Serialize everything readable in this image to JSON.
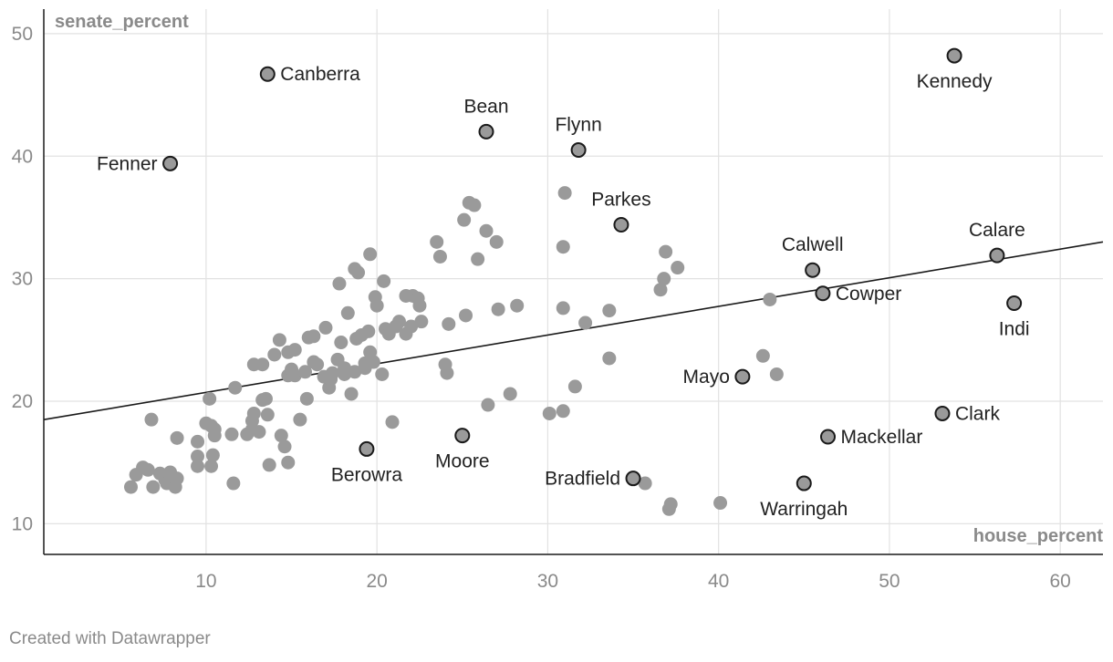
{
  "footer": "Created with Datawrapper",
  "chart_data": {
    "type": "scatter",
    "xlabel": "house_percent",
    "ylabel": "senate_percent",
    "xlim": [
      0.5,
      62.5
    ],
    "ylim": [
      7.5,
      52
    ],
    "xticks": [
      10,
      20,
      30,
      40,
      50,
      60
    ],
    "yticks": [
      10,
      20,
      30,
      40,
      50
    ],
    "grid": true,
    "colors": {
      "point": "#9a9a9a",
      "outline": "#1a1a1a",
      "trend": "#1a1a1a",
      "grid": "#e2e2e2",
      "tick": "#8a8a8a"
    },
    "trendline": {
      "x": [
        0.5,
        62.5
      ],
      "y": [
        18.5,
        33.0
      ]
    },
    "labeled_points": [
      {
        "name": "Canberra",
        "x": 13.6,
        "y": 46.7,
        "pos": "right"
      },
      {
        "name": "Fenner",
        "x": 7.9,
        "y": 39.4,
        "pos": "left"
      },
      {
        "name": "Bean",
        "x": 26.4,
        "y": 42.0,
        "pos": "above"
      },
      {
        "name": "Flynn",
        "x": 31.8,
        "y": 40.5,
        "pos": "above"
      },
      {
        "name": "Kennedy",
        "x": 53.8,
        "y": 48.2,
        "pos": "below"
      },
      {
        "name": "Parkes",
        "x": 34.3,
        "y": 34.4,
        "pos": "above"
      },
      {
        "name": "Calwell",
        "x": 45.5,
        "y": 30.7,
        "pos": "above"
      },
      {
        "name": "Calare",
        "x": 56.3,
        "y": 31.9,
        "pos": "above"
      },
      {
        "name": "Cowper",
        "x": 46.1,
        "y": 28.8,
        "pos": "right"
      },
      {
        "name": "Indi",
        "x": 57.3,
        "y": 28.0,
        "pos": "below"
      },
      {
        "name": "Mayo",
        "x": 41.4,
        "y": 22.0,
        "pos": "left"
      },
      {
        "name": "Clark",
        "x": 53.1,
        "y": 19.0,
        "pos": "right"
      },
      {
        "name": "Mackellar",
        "x": 46.4,
        "y": 17.1,
        "pos": "right"
      },
      {
        "name": "Berowra",
        "x": 19.4,
        "y": 16.1,
        "pos": "below"
      },
      {
        "name": "Moore",
        "x": 25.0,
        "y": 17.2,
        "pos": "below"
      },
      {
        "name": "Bradfield",
        "x": 35.0,
        "y": 13.7,
        "pos": "left"
      },
      {
        "name": "Warringah",
        "x": 45.0,
        "y": 13.3,
        "pos": "below"
      }
    ],
    "points": [
      [
        5.6,
        13.0
      ],
      [
        5.9,
        14.0
      ],
      [
        6.3,
        14.6
      ],
      [
        6.6,
        14.4
      ],
      [
        6.9,
        13.0
      ],
      [
        7.3,
        14.1
      ],
      [
        7.6,
        13.6
      ],
      [
        7.9,
        14.2
      ],
      [
        8.1,
        13.2
      ],
      [
        8.3,
        13.7
      ],
      [
        7.7,
        13.3
      ],
      [
        8.2,
        13.0
      ],
      [
        6.8,
        18.5
      ],
      [
        8.3,
        17.0
      ],
      [
        9.5,
        16.7
      ],
      [
        9.5,
        15.5
      ],
      [
        9.5,
        14.7
      ],
      [
        10.0,
        18.2
      ],
      [
        10.3,
        18.0
      ],
      [
        10.5,
        17.7
      ],
      [
        10.5,
        17.2
      ],
      [
        10.3,
        14.7
      ],
      [
        10.4,
        15.6
      ],
      [
        10.2,
        20.2
      ],
      [
        11.5,
        17.3
      ],
      [
        11.6,
        13.3
      ],
      [
        11.7,
        21.1
      ],
      [
        12.4,
        17.3
      ],
      [
        12.7,
        17.7
      ],
      [
        12.7,
        18.4
      ],
      [
        12.8,
        19.0
      ],
      [
        13.1,
        17.5
      ],
      [
        13.3,
        20.1
      ],
      [
        13.5,
        20.2
      ],
      [
        13.6,
        18.9
      ],
      [
        12.8,
        23.0
      ],
      [
        13.3,
        23.0
      ],
      [
        13.7,
        14.8
      ],
      [
        14.0,
        23.8
      ],
      [
        14.3,
        25.0
      ],
      [
        14.6,
        16.3
      ],
      [
        14.4,
        17.2
      ],
      [
        14.8,
        15.0
      ],
      [
        14.8,
        22.1
      ],
      [
        14.8,
        24.0
      ],
      [
        15.0,
        22.6
      ],
      [
        15.2,
        24.2
      ],
      [
        15.2,
        22.1
      ],
      [
        15.5,
        18.5
      ],
      [
        15.8,
        22.4
      ],
      [
        15.9,
        20.2
      ],
      [
        16.0,
        25.2
      ],
      [
        16.3,
        25.3
      ],
      [
        16.3,
        23.2
      ],
      [
        16.5,
        23.0
      ],
      [
        16.9,
        22.0
      ],
      [
        17.0,
        26.0
      ],
      [
        17.2,
        21.1
      ],
      [
        17.3,
        21.8
      ],
      [
        17.4,
        22.3
      ],
      [
        17.7,
        23.4
      ],
      [
        17.8,
        29.6
      ],
      [
        17.9,
        24.8
      ],
      [
        18.1,
        22.7
      ],
      [
        18.1,
        22.2
      ],
      [
        18.3,
        27.2
      ],
      [
        18.5,
        20.6
      ],
      [
        18.7,
        30.8
      ],
      [
        18.7,
        22.4
      ],
      [
        18.8,
        25.1
      ],
      [
        18.9,
        30.5
      ],
      [
        19.1,
        25.4
      ],
      [
        19.3,
        23.1
      ],
      [
        19.3,
        22.7
      ],
      [
        19.5,
        25.7
      ],
      [
        19.6,
        32.0
      ],
      [
        19.6,
        24.0
      ],
      [
        19.8,
        23.2
      ],
      [
        19.9,
        28.5
      ],
      [
        20.0,
        27.8
      ],
      [
        20.3,
        22.2
      ],
      [
        20.4,
        29.8
      ],
      [
        20.5,
        25.9
      ],
      [
        20.7,
        25.5
      ],
      [
        20.9,
        18.3
      ],
      [
        21.1,
        26.1
      ],
      [
        21.3,
        26.5
      ],
      [
        21.7,
        25.5
      ],
      [
        21.7,
        28.6
      ],
      [
        22.0,
        26.1
      ],
      [
        22.1,
        28.6
      ],
      [
        22.4,
        28.4
      ],
      [
        22.5,
        27.8
      ],
      [
        22.6,
        26.5
      ],
      [
        23.5,
        33.0
      ],
      [
        23.7,
        31.8
      ],
      [
        24.0,
        23.0
      ],
      [
        24.1,
        22.3
      ],
      [
        24.2,
        26.3
      ],
      [
        25.1,
        34.8
      ],
      [
        25.2,
        27.0
      ],
      [
        25.4,
        36.2
      ],
      [
        25.7,
        36.0
      ],
      [
        25.9,
        31.6
      ],
      [
        26.4,
        33.9
      ],
      [
        26.5,
        19.7
      ],
      [
        27.0,
        33.0
      ],
      [
        27.1,
        27.5
      ],
      [
        27.8,
        20.6
      ],
      [
        28.2,
        27.8
      ],
      [
        30.1,
        19.0
      ],
      [
        30.9,
        32.6
      ],
      [
        30.9,
        19.2
      ],
      [
        30.9,
        27.6
      ],
      [
        31.0,
        37.0
      ],
      [
        31.6,
        21.2
      ],
      [
        32.2,
        26.4
      ],
      [
        33.6,
        27.4
      ],
      [
        33.6,
        23.5
      ],
      [
        35.7,
        13.3
      ],
      [
        36.6,
        29.1
      ],
      [
        36.8,
        30.0
      ],
      [
        36.9,
        32.2
      ],
      [
        37.1,
        11.2
      ],
      [
        37.2,
        11.6
      ],
      [
        37.6,
        30.9
      ],
      [
        40.1,
        11.7
      ],
      [
        42.6,
        23.7
      ],
      [
        43.0,
        28.3
      ],
      [
        43.4,
        22.2
      ]
    ]
  }
}
